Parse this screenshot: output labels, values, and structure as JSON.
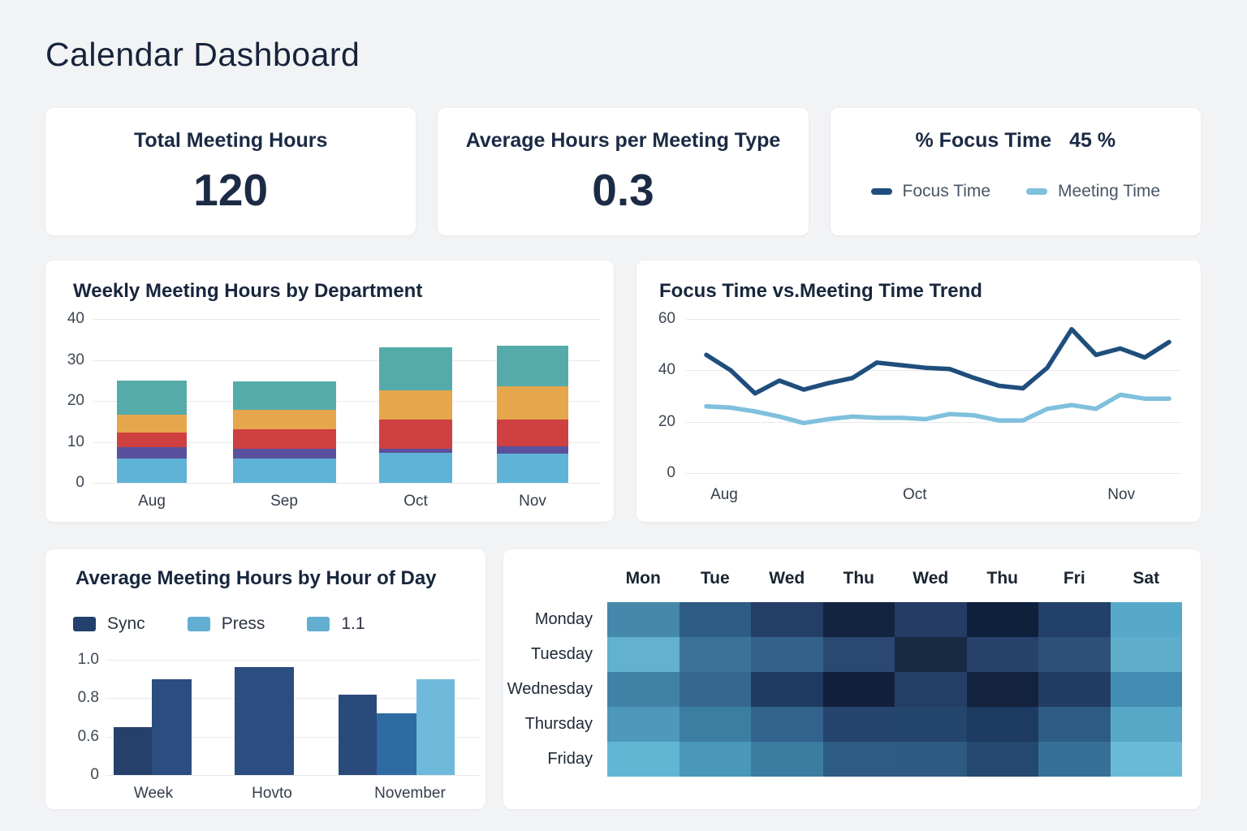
{
  "page": {
    "title": "Calendar Dashboard",
    "background": "#f2f3f5"
  },
  "kpi_cards": [
    {
      "title": "Total Meeting Hours",
      "value": "120"
    },
    {
      "title": "Average Hours per Meeting Type",
      "value": "0.3"
    },
    {
      "title": "% Focus Time",
      "value": "45 %",
      "legend": [
        {
          "label": "Focus Time",
          "color": "#1f4e7d"
        },
        {
          "label": "Meeting Time",
          "color": "#7fc0dc"
        }
      ]
    }
  ],
  "chart_data": [
    {
      "id": "weekly_meeting_hours",
      "type": "bar",
      "stacked": true,
      "title": "Weekly Meeting Hours by Department",
      "categories": [
        "Aug",
        "Sep",
        "Oct",
        "Nov"
      ],
      "series": [
        {
          "name": "segment-lightblue",
          "color": "#5fb3d6",
          "values": [
            6.0,
            6.0,
            7.3,
            7.2
          ]
        },
        {
          "name": "segment-indigo",
          "color": "#5a519e",
          "values": [
            2.7,
            2.4,
            1.0,
            1.8
          ]
        },
        {
          "name": "segment-red",
          "color": "#cf4040",
          "values": [
            3.6,
            4.6,
            7.2,
            6.5
          ]
        },
        {
          "name": "segment-orange",
          "color": "#e6a64b",
          "values": [
            4.4,
            4.8,
            7.0,
            8.0
          ]
        },
        {
          "name": "segment-teal",
          "color": "#55abaa",
          "values": [
            8.3,
            7.0,
            10.5,
            10.0
          ]
        }
      ],
      "yticks": [
        0,
        10,
        20,
        30,
        40
      ],
      "ylim": [
        0,
        40
      ],
      "grid": true,
      "legend_position": "none"
    },
    {
      "id": "focus_trend",
      "type": "line",
      "title": "Focus Time vs.Meeting Time Trend",
      "x_labels": [
        {
          "label": "Aug",
          "pos": 0.077
        },
        {
          "label": "Oct",
          "pos": 0.462
        },
        {
          "label": "Nov",
          "pos": 0.879
        }
      ],
      "series": [
        {
          "name": "Focus Time",
          "color": "#1f4e7d",
          "values": [
            46,
            40,
            31,
            36,
            32.5,
            35,
            37,
            43,
            42,
            41,
            40.5,
            37,
            34,
            33,
            41,
            56,
            46,
            48.5,
            45,
            51
          ]
        },
        {
          "name": "Meeting Time",
          "color": "#7fc0dc",
          "values": [
            26,
            25.5,
            24,
            22,
            19.5,
            21,
            22,
            21.5,
            21.5,
            21,
            23,
            22.5,
            20.5,
            20.5,
            25,
            26.5,
            25,
            30.5,
            29,
            29
          ]
        }
      ],
      "yticks": [
        0,
        20,
        40,
        60
      ],
      "ylim": [
        0,
        60
      ],
      "grid": true
    },
    {
      "id": "avg_hours_by_hour",
      "type": "bar",
      "title": "Average Meeting Hours by Hour of Day",
      "legend": [
        {
          "label": "Sync",
          "color": "#24406c"
        },
        {
          "label": "Press",
          "color": "#62afd2"
        },
        {
          "label": "1.1",
          "color": "#62afd2"
        }
      ],
      "categories": [
        "Week",
        "Hovto",
        "November"
      ],
      "groups": [
        {
          "category": "Week",
          "bars": [
            {
              "value": 0.65,
              "color": "#263f6b"
            },
            {
              "value": 0.9,
              "color": "#2b4d80"
            }
          ]
        },
        {
          "category": "Hovto",
          "bars": [
            {
              "value": 0.96,
              "color": "#2b4d80"
            }
          ]
        },
        {
          "category": "November",
          "bars": [
            {
              "value": 0.82,
              "color": "#2a4a7c"
            },
            {
              "value": 0.72,
              "color": "#2f6ba3"
            },
            {
              "value": 0.9,
              "color": "#6fb9da"
            }
          ]
        }
      ],
      "yticks": [
        0,
        0.6,
        0.8,
        1.0
      ],
      "ytick_labels": [
        "0",
        "0.6",
        "0.8",
        "1.0"
      ],
      "grid": true,
      "legend_position": "top"
    },
    {
      "id": "meeting_heatmap",
      "type": "heatmap",
      "col_headers": [
        "Mon",
        "Tue",
        "Wed",
        "Thu",
        "Wed",
        "Thu",
        "Fri",
        "Sat"
      ],
      "row_labels": [
        "Monday",
        "Tuesday",
        "Wednesday",
        "Thursday",
        "Friday"
      ],
      "cell_colors": [
        [
          "#4588ac",
          "#2e5c85",
          "#253e68",
          "#132440",
          "#243c66",
          "#0f203c",
          "#224069",
          "#57a9c9"
        ],
        [
          "#61b1cf",
          "#3d7298",
          "#32618a",
          "#2a4872",
          "#182a42",
          "#27416a",
          "#2d5078",
          "#5dadcb"
        ],
        [
          "#4181a6",
          "#36688f",
          "#1f3a60",
          "#11203c",
          "#253e66",
          "#13223e",
          "#233c64",
          "#438cb1"
        ],
        [
          "#4d98bb",
          "#3c7da2",
          "#32638c",
          "#25446e",
          "#24456e",
          "#1d3a61",
          "#2e5c85",
          "#57a9c7"
        ],
        [
          "#61b6d3",
          "#4997b9",
          "#3b7ca1",
          "#2d5b84",
          "#2d5a82",
          "#24486f",
          "#386f99",
          "#69bad7"
        ]
      ]
    }
  ]
}
